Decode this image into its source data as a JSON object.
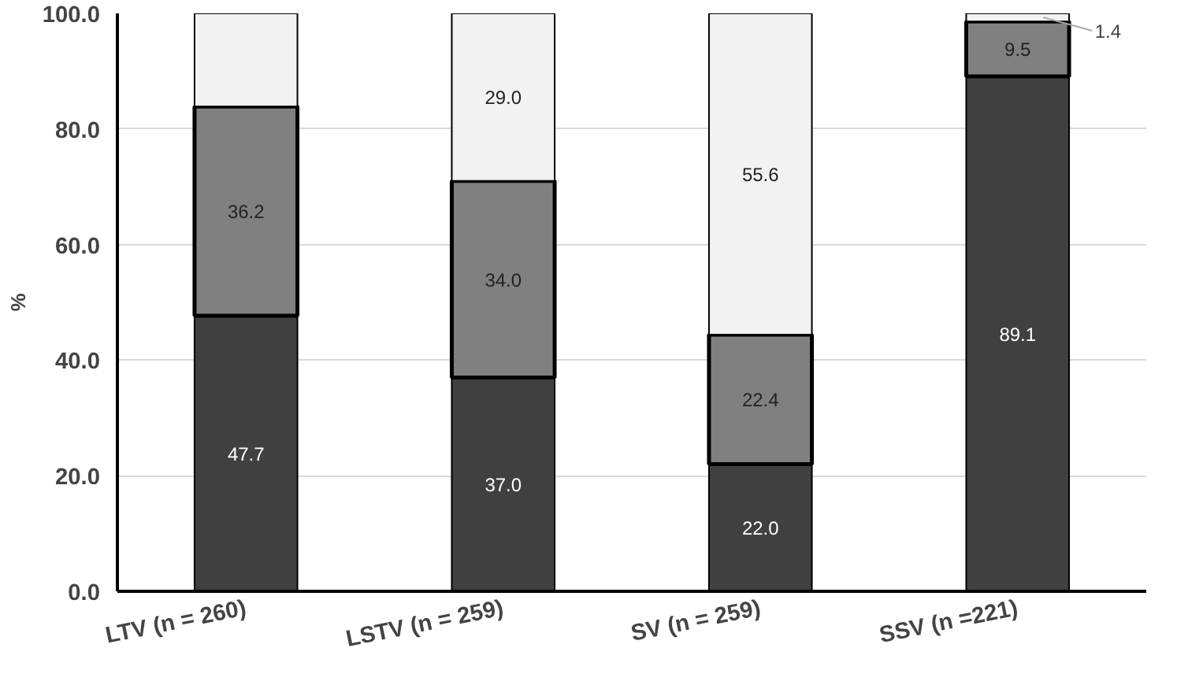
{
  "chart_data": {
    "type": "bar",
    "stacked": true,
    "ylabel": "%",
    "categories": [
      "LTV (n = 260)",
      "LSTV (n = 259)",
      "SV (n = 259)",
      "SSV (n =221)"
    ],
    "series": [
      {
        "color": "#404040",
        "values": [
          47.7,
          37.0,
          22.0,
          89.1
        ],
        "value_labels": [
          "47.7",
          "37.0",
          "22.0",
          "89.1"
        ]
      },
      {
        "color": "#808080",
        "values": [
          36.2,
          34.0,
          22.4,
          9.5
        ],
        "value_labels": [
          "36.2",
          "34.0",
          "22.4",
          "9.5"
        ]
      },
      {
        "color": "#f2f2f2",
        "values": [
          16.1,
          29.0,
          55.6,
          1.4
        ],
        "value_labels": [
          null,
          "29.0",
          "55.6",
          "1.4"
        ]
      }
    ],
    "ylim": [
      0,
      100
    ],
    "yticks": [
      {
        "value": 0,
        "label": "0.0"
      },
      {
        "value": 20,
        "label": "20.0"
      },
      {
        "value": 40,
        "label": "40.0"
      },
      {
        "value": 60,
        "label": "60.0"
      },
      {
        "value": 80,
        "label": "80.0"
      },
      {
        "value": 100,
        "label": "100.0"
      }
    ],
    "grid": "y"
  }
}
